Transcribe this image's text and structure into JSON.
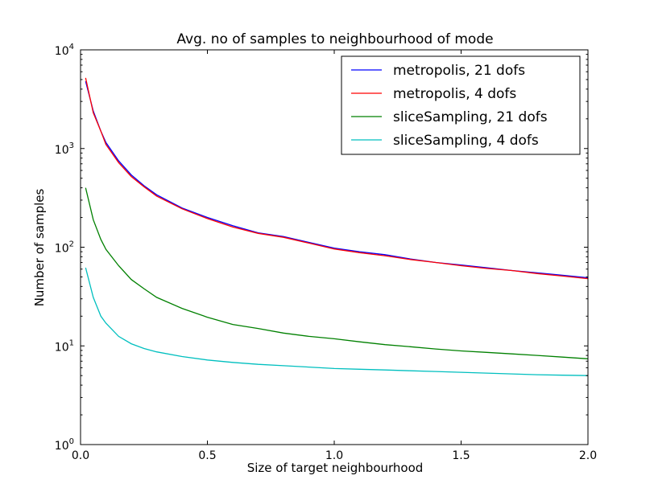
{
  "chart_data": {
    "type": "line",
    "title": "Avg. no of samples to neighbourhood of mode",
    "xlabel": "Size of target neighbourhood",
    "ylabel": "Number of samples",
    "xlim": [
      0.0,
      2.0
    ],
    "ylim": [
      1,
      10000
    ],
    "yscale": "log",
    "grid": false,
    "legend_position": "top-right",
    "x_ticks": [
      "0.0",
      "0.5",
      "1.0",
      "1.5",
      "2.0"
    ],
    "y_ticks": [
      {
        "base": "10",
        "exp": "0"
      },
      {
        "base": "10",
        "exp": "1"
      },
      {
        "base": "10",
        "exp": "2"
      },
      {
        "base": "10",
        "exp": "3"
      },
      {
        "base": "10",
        "exp": "4"
      }
    ],
    "x": [
      0.02,
      0.05,
      0.08,
      0.1,
      0.15,
      0.2,
      0.25,
      0.3,
      0.4,
      0.5,
      0.6,
      0.7,
      0.8,
      0.9,
      1.0,
      1.1,
      1.2,
      1.3,
      1.4,
      1.5,
      1.6,
      1.7,
      1.8,
      1.9,
      2.0
    ],
    "series": [
      {
        "name": "metropolis, 21 dofs",
        "color": "#0000ff",
        "values": [
          4800,
          2400,
          1500,
          1150,
          750,
          540,
          420,
          340,
          250,
          200,
          165,
          140,
          128,
          112,
          98,
          90,
          84,
          76,
          70,
          66,
          62,
          58,
          55,
          52,
          49
        ]
      },
      {
        "name": "metropolis, 4 dofs",
        "color": "#ff0000",
        "values": [
          5200,
          2300,
          1500,
          1100,
          720,
          520,
          410,
          330,
          245,
          195,
          160,
          138,
          126,
          110,
          96,
          88,
          82,
          75,
          70,
          65,
          61,
          58,
          54,
          51,
          48
        ]
      },
      {
        "name": "sliceSampling, 21 dofs",
        "color": "#008000",
        "values": [
          400,
          190,
          120,
          95,
          65,
          47,
          38,
          31,
          24,
          19.5,
          16.5,
          15,
          13.5,
          12.5,
          11.8,
          11,
          10.3,
          9.8,
          9.3,
          8.9,
          8.6,
          8.3,
          8,
          7.7,
          7.4
        ]
      },
      {
        "name": "sliceSampling, 4 dofs",
        "color": "#00bfbf",
        "values": [
          62,
          31,
          20,
          17,
          12.5,
          10.5,
          9.4,
          8.7,
          7.8,
          7.2,
          6.8,
          6.5,
          6.3,
          6.1,
          5.9,
          5.8,
          5.7,
          5.6,
          5.5,
          5.4,
          5.3,
          5.2,
          5.1,
          5.05,
          5.0
        ]
      }
    ]
  }
}
